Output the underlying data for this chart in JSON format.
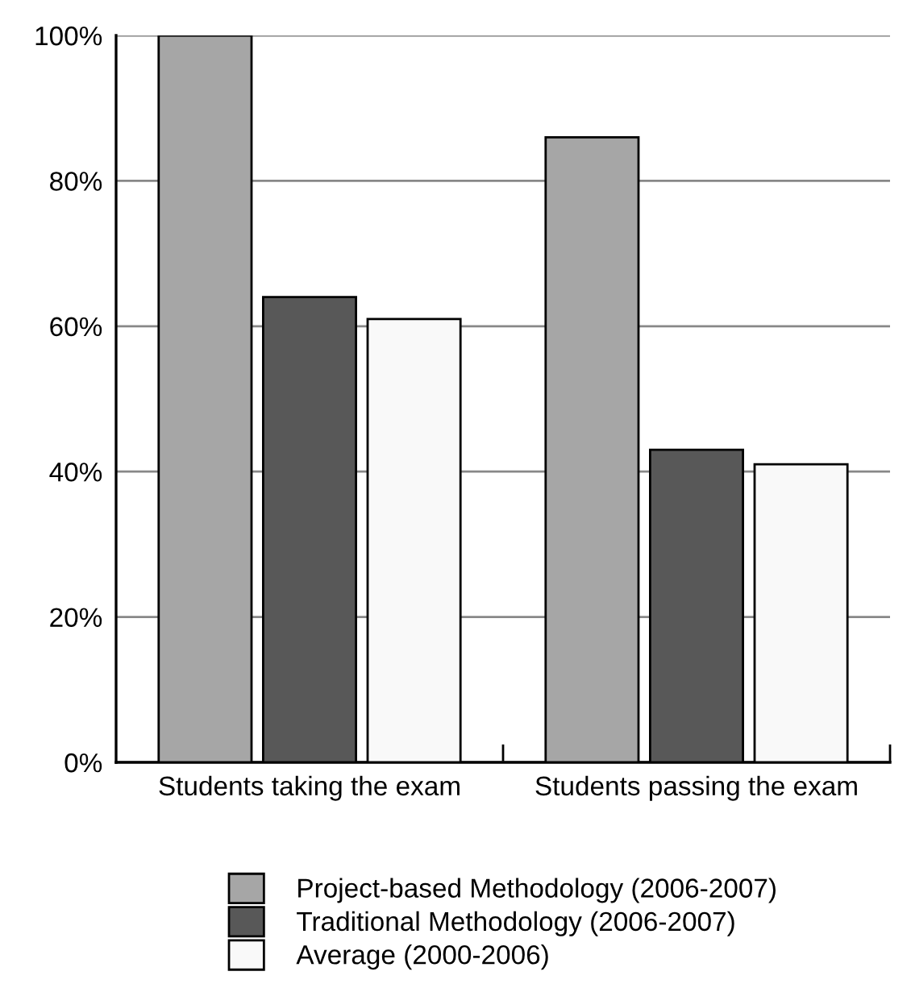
{
  "chart_data": {
    "type": "bar",
    "categories": [
      "Students taking the exam",
      "Students passing the exam"
    ],
    "series": [
      {
        "name": "Project-based Methodology (2006-2007)",
        "color": "#a6a6a6",
        "values": [
          100,
          86
        ]
      },
      {
        "name": "Traditional Methodology (2006-2007)",
        "color": "#585858",
        "values": [
          64,
          43
        ]
      },
      {
        "name": "Average (2000-2006)",
        "color": "#f9f9f9",
        "values": [
          61,
          41
        ]
      }
    ],
    "ylim": [
      0,
      100
    ],
    "yticks": [
      {
        "value": 0,
        "label": "0%"
      },
      {
        "value": 20,
        "label": "20%"
      },
      {
        "value": 40,
        "label": "40%"
      },
      {
        "value": 60,
        "label": "60%"
      },
      {
        "value": 80,
        "label": "80%"
      },
      {
        "value": 100,
        "label": "100%"
      }
    ],
    "grid": "y",
    "legend": "bottom"
  }
}
